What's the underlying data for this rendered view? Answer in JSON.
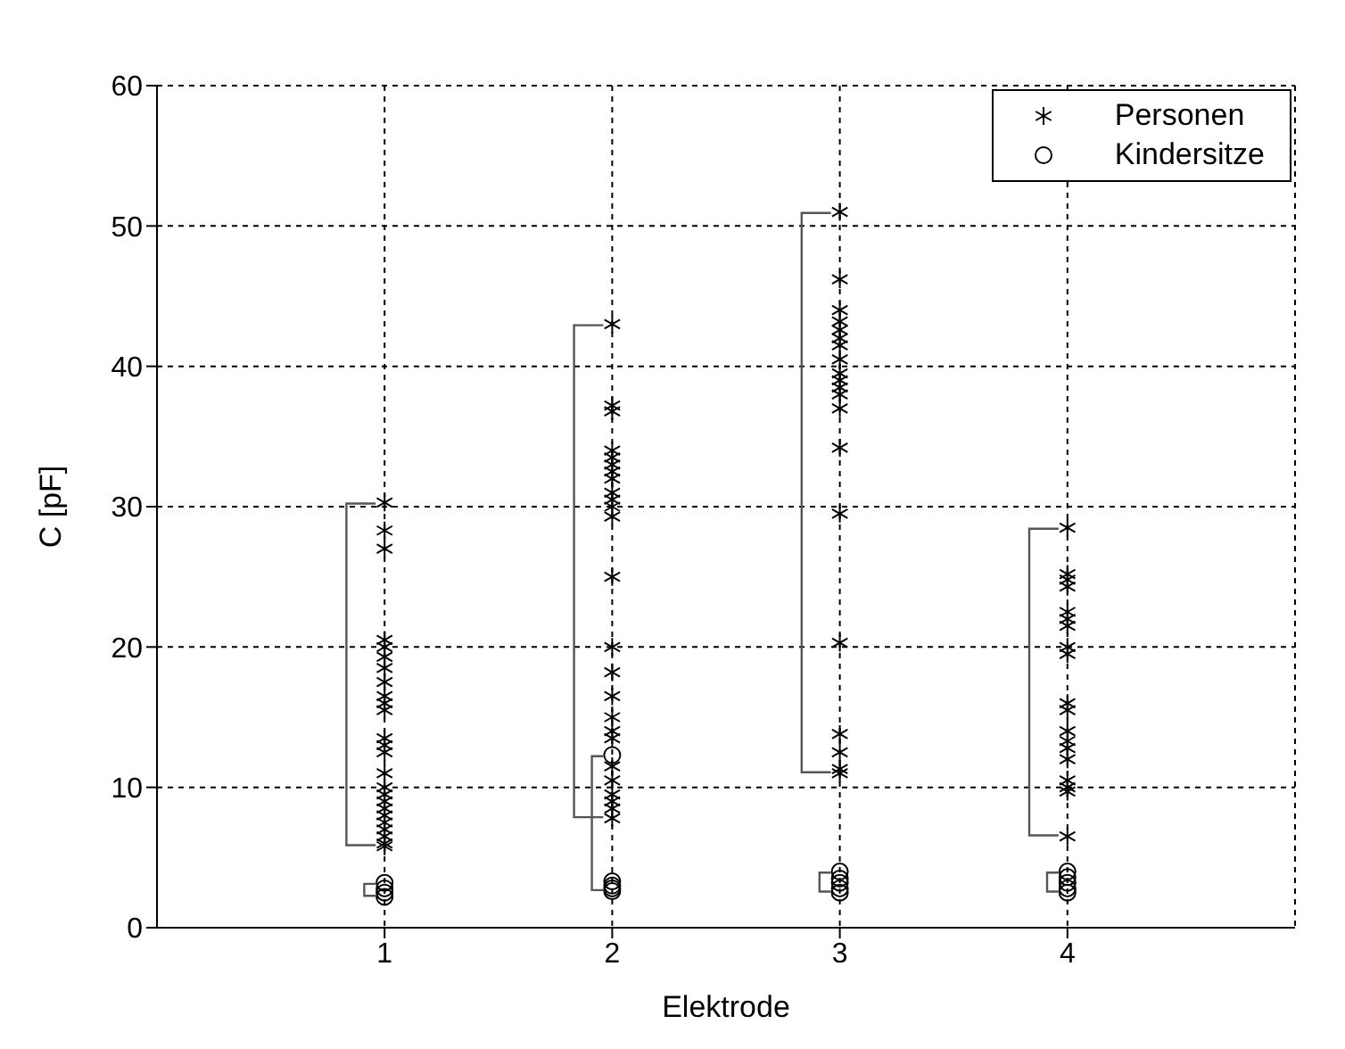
{
  "chart_data": {
    "type": "scatter",
    "xlabel": "Elektrode",
    "ylabel": "C [pF]",
    "xlim": [
      0,
      5
    ],
    "xticks": [
      1,
      2,
      3,
      4
    ],
    "ylim": [
      0,
      60
    ],
    "yticks": [
      0,
      10,
      20,
      30,
      40,
      50,
      60
    ],
    "grid": true,
    "legend": "top right",
    "series": [
      {
        "name": "Personen",
        "color": "#000000",
        "marker": "cross",
        "x": [
          1,
          1,
          1,
          1,
          1,
          1,
          1,
          1,
          1,
          1,
          1,
          1,
          1,
          1,
          1,
          1,
          1,
          1,
          1,
          1,
          1,
          1,
          1,
          1,
          1,
          2,
          2,
          2,
          2,
          2,
          2,
          2,
          2,
          2,
          2,
          2,
          2,
          2,
          2,
          2,
          2,
          2,
          2,
          2,
          2,
          2,
          2,
          2,
          2,
          2,
          3,
          3,
          3,
          3,
          3,
          3,
          3,
          3,
          3,
          3,
          3,
          3,
          3,
          3,
          3,
          3,
          3,
          3,
          3,
          3,
          4,
          4,
          4,
          4,
          4,
          4,
          4,
          4,
          4,
          4,
          4,
          4,
          4,
          4,
          4,
          4,
          4,
          4,
          4
        ],
        "values": [
          30.3,
          28.3,
          27.0,
          20.5,
          20.0,
          19.3,
          18.5,
          17.5,
          16.5,
          16.0,
          15.5,
          13.5,
          13.0,
          12.5,
          11.0,
          10.0,
          9.5,
          9.0,
          8.5,
          8.0,
          7.5,
          7.0,
          6.5,
          6.0,
          5.8,
          43.0,
          37.2,
          36.8,
          34.0,
          33.5,
          33.0,
          32.5,
          32.0,
          31.0,
          30.5,
          30.0,
          29.3,
          25.0,
          20.0,
          18.2,
          16.5,
          15.0,
          14.0,
          13.5,
          11.5,
          10.5,
          9.5,
          9.0,
          8.5,
          7.8,
          51.0,
          46.2,
          44.0,
          43.2,
          42.6,
          42.0,
          41.5,
          40.5,
          39.5,
          39.0,
          38.5,
          38.0,
          37.0,
          34.2,
          29.5,
          20.3,
          13.8,
          12.5,
          11.3,
          11.0,
          28.5,
          25.2,
          24.8,
          24.3,
          22.5,
          22.0,
          21.5,
          20.0,
          19.5,
          16.0,
          15.5,
          14.0,
          13.3,
          12.8,
          12.0,
          10.5,
          10.0,
          9.7,
          6.5
        ]
      },
      {
        "name": "Kindersitze",
        "color": "#000000",
        "marker": "circle",
        "x": [
          1,
          1,
          1,
          1,
          2,
          2,
          2,
          2,
          2,
          3,
          3,
          3,
          3,
          3,
          4,
          4,
          4,
          4,
          4
        ],
        "values": [
          3.2,
          2.8,
          2.5,
          2.2,
          12.3,
          3.3,
          3.0,
          2.8,
          2.6,
          4.0,
          3.5,
          3.2,
          2.8,
          2.5,
          4.0,
          3.6,
          3.2,
          2.8,
          2.5
        ]
      }
    ]
  }
}
